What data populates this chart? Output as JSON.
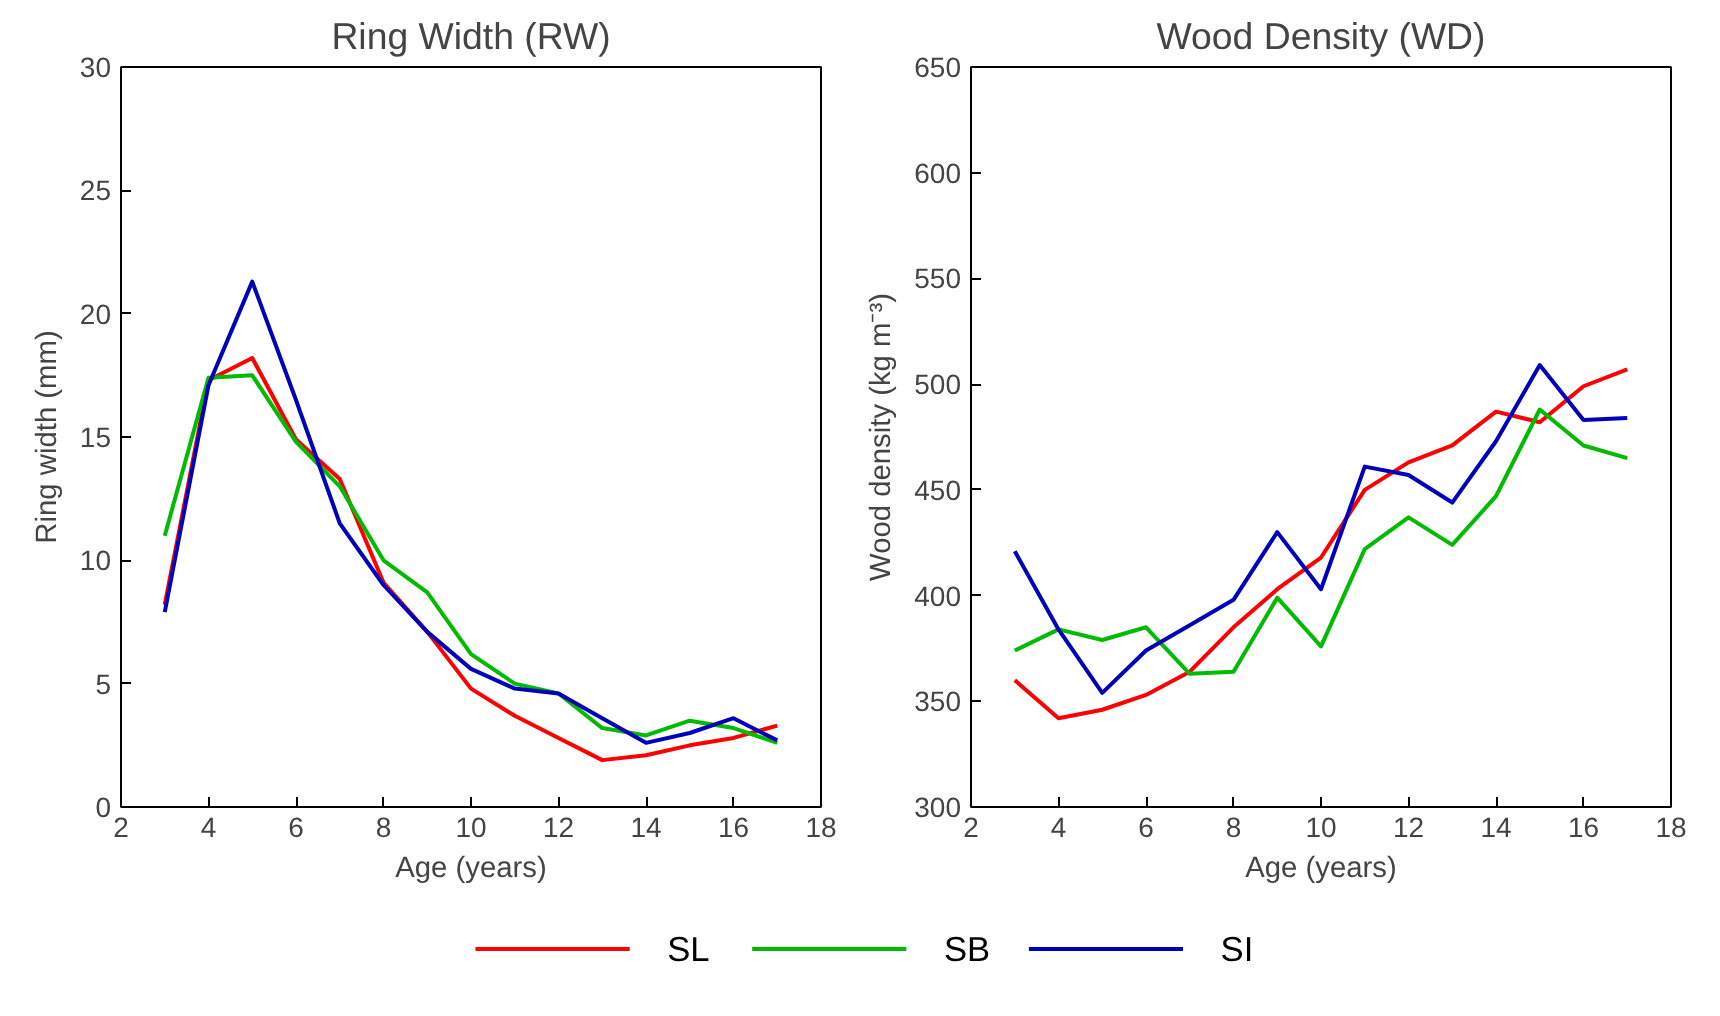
{
  "chart_data": [
    {
      "type": "line",
      "title": "Ring Width (RW)",
      "xlabel": "Age (years)",
      "ylabel": "Ring width (mm)",
      "x": [
        3,
        4,
        5,
        6,
        7,
        8,
        9,
        10,
        11,
        12,
        13,
        14,
        15,
        16,
        17
      ],
      "xlim": [
        2,
        18
      ],
      "xticks": [
        2,
        4,
        6,
        8,
        10,
        12,
        14,
        16,
        18
      ],
      "ylim": [
        0,
        30
      ],
      "yticks": [
        0,
        5,
        10,
        15,
        20,
        25,
        30
      ],
      "grid": false,
      "series": [
        {
          "color": "#ff0000",
          "values": [
            8.2,
            17.3,
            18.2,
            14.9,
            13.3,
            9.1,
            7.1,
            4.8,
            3.7,
            2.8,
            1.9,
            2.1,
            2.5,
            2.8,
            3.3
          ]
        },
        {
          "color": "#00bb00",
          "values": [
            11.0,
            17.4,
            17.5,
            14.8,
            13.0,
            10.0,
            8.7,
            6.2,
            5.0,
            4.6,
            3.2,
            2.9,
            3.5,
            3.2,
            2.6
          ]
        },
        {
          "color": "#0000bb",
          "values": [
            7.9,
            17.1,
            21.3,
            16.5,
            11.5,
            9.0,
            7.1,
            5.6,
            4.8,
            4.6,
            3.6,
            2.6,
            3.0,
            3.6,
            2.7
          ]
        }
      ]
    },
    {
      "type": "line",
      "title": "Wood Density (WD)",
      "xlabel": "Age (years)",
      "ylabel": "Wood density (kg m⁻³)",
      "x": [
        3,
        4,
        5,
        6,
        7,
        8,
        9,
        10,
        11,
        12,
        13,
        14,
        15,
        16,
        17
      ],
      "xlim": [
        2,
        18
      ],
      "xticks": [
        2,
        4,
        6,
        8,
        10,
        12,
        14,
        16,
        18
      ],
      "ylim": [
        300,
        650
      ],
      "yticks": [
        300,
        350,
        400,
        450,
        500,
        550,
        600,
        650
      ],
      "grid": false,
      "legend": "bottom",
      "series": [
        {
          "name": "SL",
          "color": "#ff0000",
          "values": [
            360,
            342,
            346,
            353,
            364,
            385,
            403,
            418,
            450,
            463,
            471,
            487,
            482,
            499,
            507
          ]
        },
        {
          "name": "SB",
          "color": "#00bb00",
          "values": [
            374,
            384,
            379,
            385,
            363,
            364,
            399,
            376,
            422,
            437,
            424,
            447,
            488,
            471,
            465
          ]
        },
        {
          "name": "SI",
          "color": "#0000bb",
          "values": [
            421,
            384,
            354,
            374,
            386,
            398,
            430,
            403,
            461,
            457,
            444,
            473,
            509,
            483,
            484
          ]
        }
      ]
    }
  ]
}
